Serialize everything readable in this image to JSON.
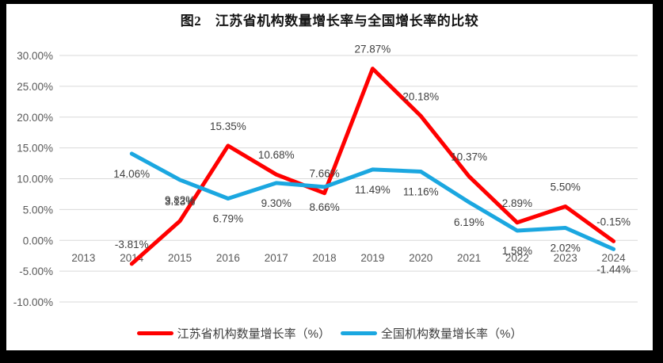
{
  "window": {
    "frame_color": "#000000",
    "canvas_color": "#FFFFFF"
  },
  "title": "图2　江苏省机构数量增长率与全国增长率的比较",
  "chart_data": {
    "type": "line",
    "title": "图2　江苏省机构数量增长率与全国增长率的比较",
    "categories": [
      "2013",
      "2014",
      "2015",
      "2016",
      "2017",
      "2018",
      "2019",
      "2020",
      "2021",
      "2022",
      "2023",
      "2024"
    ],
    "series": [
      {
        "name": "江苏省机构数量增长率（%）",
        "color": "#FF0000",
        "label_position": "above",
        "values": [
          null,
          -3.81,
          3.13,
          15.35,
          10.68,
          7.66,
          27.87,
          20.18,
          10.37,
          2.89,
          5.5,
          -0.15
        ],
        "labels": [
          "",
          "-3.81%",
          "3.13%",
          "15.35%",
          "10.68%",
          "7.66%",
          "27.87%",
          "20.18%",
          "10.37%",
          "2.89%",
          "5.50%",
          "-0.15%"
        ]
      },
      {
        "name": "全国机构数量增长率（%）",
        "color": "#1BA7E0",
        "label_position": "below",
        "values": [
          null,
          14.06,
          9.82,
          6.79,
          9.3,
          8.66,
          11.49,
          11.16,
          6.19,
          1.58,
          2.02,
          -1.44
        ],
        "labels": [
          "",
          "14.06%",
          "9.82%",
          "6.79%",
          "9.30%",
          "8.66%",
          "11.49%",
          "11.16%",
          "6.19%",
          "1.58%",
          "2.02%",
          "-1.44%"
        ]
      }
    ],
    "ylim": [
      -10,
      30
    ],
    "ytick_step": 5,
    "ytick_labels": [
      "30.00%",
      "25.00%",
      "20.00%",
      "15.00%",
      "10.00%",
      "5.00%",
      "0.00%",
      "-5.00%",
      "-10.00%"
    ],
    "grid": true,
    "legend_position": "bottom",
    "colors": {
      "grid": "#D9D9D9",
      "axis_text": "#595959",
      "data_label": "#404040"
    }
  }
}
